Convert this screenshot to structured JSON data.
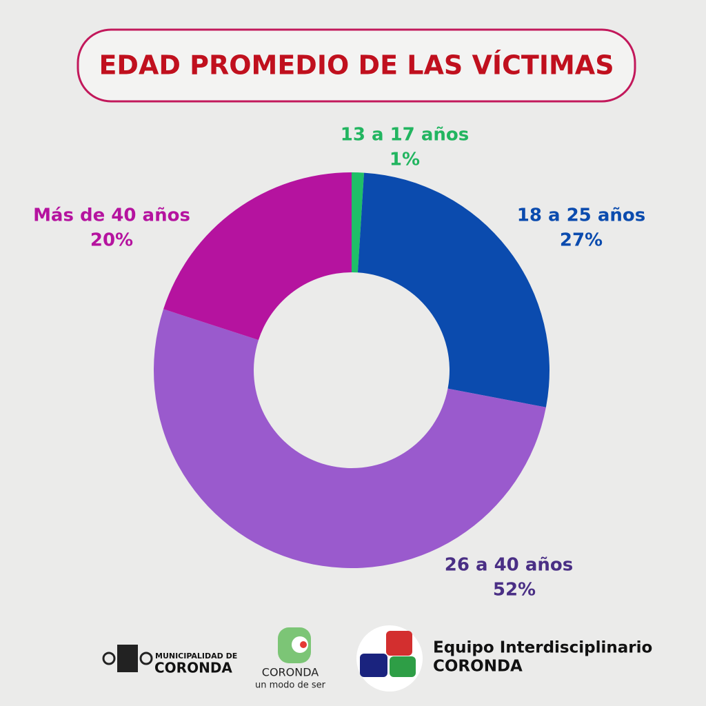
{
  "chart_data": {
    "type": "donut",
    "title": "EDAD PROMEDIO DE LAS VÍCTIMAS",
    "categories": [
      "13 a 17 años",
      "18 a 25 años",
      "26 a 40 años",
      "Más de 40 años"
    ],
    "values": [
      1,
      27,
      52,
      20
    ],
    "value_labels": [
      "1%",
      "27%",
      "52%",
      "20%"
    ],
    "colors": [
      "#1fbf68",
      "#0b4bae",
      "#9a5acd",
      "#b5139f"
    ],
    "label_colors": [
      "#22b560",
      "#0b4bae",
      "#4a2f85",
      "#b5139f"
    ]
  },
  "footer": {
    "municipality_small": "MUNICIPALIDAD DE",
    "municipality_name": "CORONDA",
    "brand_name": "CORONDA",
    "brand_slogan": "un modo de ser",
    "team_line1": "Equipo Interdisciplinario",
    "team_line2": "CORONDA"
  }
}
